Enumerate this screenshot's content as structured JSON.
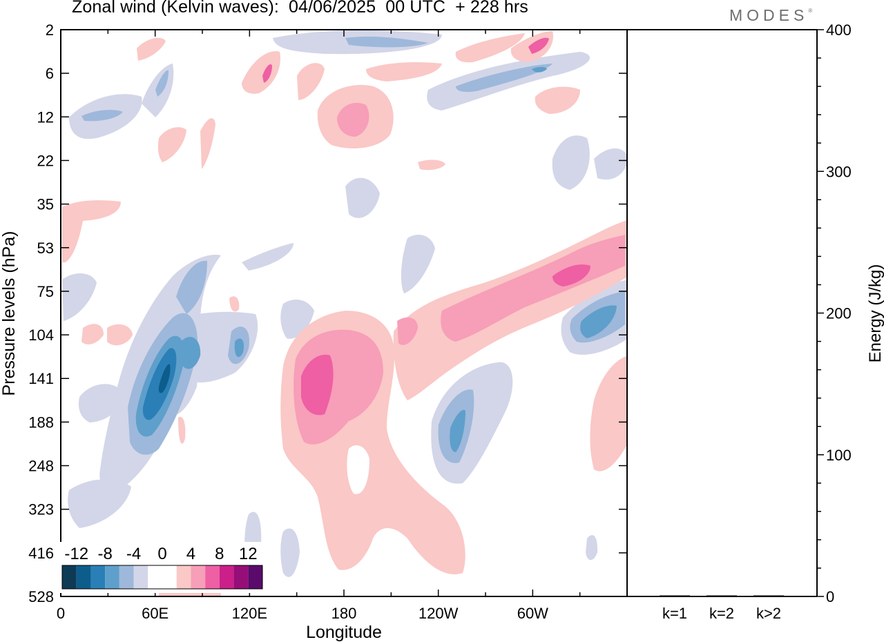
{
  "header": {
    "title": "Zonal wind (Kelvin waves):  04/06/2025  00 UTC  + 228 hrs",
    "logo": "MODES"
  },
  "chart_data": [
    {
      "type": "heatmap",
      "title": "Zonal wind (Kelvin waves):  04/06/2025  00 UTC  + 228 hrs",
      "xlabel": "Longitude",
      "ylabel": "Pressure levels (hPa)",
      "x_ticks": [
        "0",
        "60E",
        "120E",
        "180",
        "120W",
        "60W"
      ],
      "y_ticks": [
        "2",
        "6",
        "12",
        "22",
        "35",
        "53",
        "75",
        "104",
        "141",
        "188",
        "248",
        "323",
        "416",
        "528"
      ],
      "y_scale": "log (reversed)",
      "colorbar": {
        "labels": [
          "-12",
          "-8",
          "-4",
          "0",
          "4",
          "8",
          "12"
        ],
        "colors": [
          "#0d3a55",
          "#0c5d8c",
          "#2a7fb6",
          "#5f9fcb",
          "#9db8da",
          "#d3d6e8",
          "#ffffff",
          "#ffffff",
          "#fac8c6",
          "#f79eb8",
          "#ee5fa3",
          "#cb1f8a",
          "#960e77",
          "#5a0a6b"
        ]
      },
      "features": [
        {
          "sign": "negative",
          "min": -12,
          "lon": "60E-65E",
          "p_range": [
            100,
            200
          ]
        },
        {
          "sign": "positive",
          "min": 8,
          "lon": "160E-190E",
          "p_range": [
            100,
            250
          ]
        },
        {
          "sign": "positive",
          "min": 8,
          "lon": "120W-20W",
          "p_range": [
            50,
            110
          ]
        },
        {
          "sign": "negative",
          "min": -8,
          "lon": "110W-100W",
          "p_range": [
            150,
            230
          ]
        },
        {
          "sign": "negative",
          "min": -8,
          "lon": "25W-0",
          "p_range": [
            85,
            120
          ]
        }
      ]
    },
    {
      "type": "bar",
      "categories": [
        "k=1",
        "k=2",
        "k>2"
      ],
      "values": [
        0.4,
        0.3,
        0.3
      ],
      "ylabel": "Energy (J/kg)",
      "ylim": [
        0,
        400
      ],
      "y_ticks": [
        0,
        100,
        200,
        300,
        400
      ],
      "axis_side": "right"
    }
  ]
}
